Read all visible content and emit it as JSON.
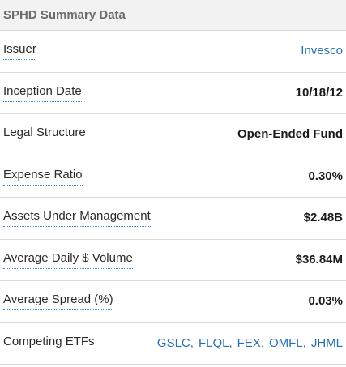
{
  "header": {
    "title": "SPHD Summary Data"
  },
  "rows": [
    {
      "label": "Issuer",
      "value": "Invesco"
    },
    {
      "label": "Inception Date",
      "value": "10/18/12"
    },
    {
      "label": "Legal Structure",
      "value": "Open-Ended Fund"
    },
    {
      "label": "Expense Ratio",
      "value": "0.30%"
    },
    {
      "label": "Assets Under Management",
      "value": "$2.48B"
    },
    {
      "label": "Average Daily $ Volume",
      "value": "$36.84M"
    },
    {
      "label": "Average Spread (%)",
      "value": "0.03%"
    },
    {
      "label": "Competing ETFs",
      "values": [
        "GSLC",
        "FLQL",
        "FEX",
        "OMFL",
        "JHML"
      ]
    }
  ],
  "colors": {
    "link": "#2a6fb0",
    "header_bg": "#f2f2f2"
  }
}
